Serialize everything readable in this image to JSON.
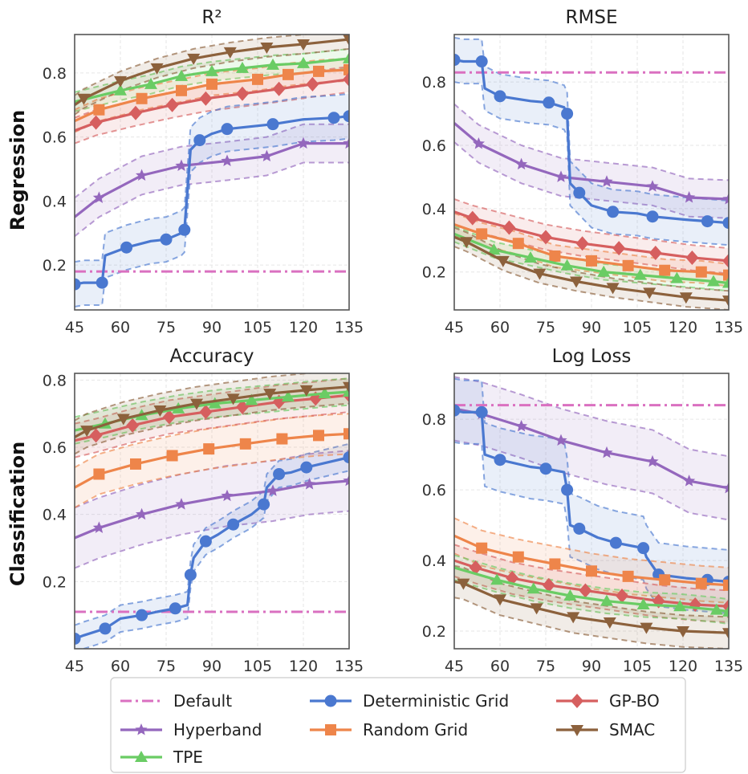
{
  "row_labels": [
    "Regression",
    "Classification"
  ],
  "legend": {
    "items": [
      {
        "label": "Default",
        "color": "#da70c0",
        "marker": "none",
        "dash": "dashdot"
      },
      {
        "label": "Deterministic Grid",
        "color": "#4a78d0",
        "marker": "circle"
      },
      {
        "label": "GP-BO",
        "color": "#d65f5f",
        "marker": "diamond"
      },
      {
        "label": "Hyperband",
        "color": "#9467bd",
        "marker": "star"
      },
      {
        "label": "Random Grid",
        "color": "#ee854a",
        "marker": "square"
      },
      {
        "label": "SMAC",
        "color": "#8c613c",
        "marker": "triangle-down"
      },
      {
        "label": "TPE",
        "color": "#6acc64",
        "marker": "triangle-up"
      }
    ]
  },
  "chart_data": [
    {
      "type": "line",
      "title": "R²",
      "row_label": "Regression",
      "xlabel": "",
      "ylabel": "",
      "xlim": [
        45,
        135
      ],
      "ylim": [
        0.06,
        0.92
      ],
      "xticks": [
        45,
        60,
        75,
        90,
        105,
        120,
        135
      ],
      "yticks": [
        0.2,
        0.4,
        0.6,
        0.8
      ],
      "grid": true,
      "series": [
        {
          "name": "Default",
          "x": [
            45,
            135
          ],
          "y": [
            0.18,
            0.18
          ]
        },
        {
          "name": "Hyperband",
          "x": [
            45,
            53,
            67,
            80,
            95,
            108,
            120,
            135
          ],
          "y": [
            0.35,
            0.41,
            0.48,
            0.51,
            0.525,
            0.54,
            0.58,
            0.58
          ],
          "band": 0.06
        },
        {
          "name": "TPE",
          "x": [
            45,
            60,
            70,
            80,
            90,
            100,
            110,
            120,
            135
          ],
          "y": [
            0.71,
            0.745,
            0.765,
            0.79,
            0.805,
            0.815,
            0.825,
            0.83,
            0.845
          ],
          "band": 0.03
        },
        {
          "name": "Random Grid",
          "x": [
            45,
            53,
            67,
            80,
            90,
            105,
            115,
            125,
            135
          ],
          "y": [
            0.65,
            0.685,
            0.72,
            0.745,
            0.765,
            0.78,
            0.795,
            0.805,
            0.81
          ],
          "band": 0.035
        },
        {
          "name": "GP-BO",
          "x": [
            45,
            52,
            65,
            77,
            88,
            100,
            112,
            123,
            135
          ],
          "y": [
            0.62,
            0.645,
            0.675,
            0.7,
            0.72,
            0.735,
            0.75,
            0.765,
            0.78
          ],
          "band": 0.04
        },
        {
          "name": "SMAC",
          "x": [
            45,
            48,
            60,
            72,
            84,
            96,
            108,
            120,
            135
          ],
          "y": [
            0.7,
            0.72,
            0.775,
            0.815,
            0.845,
            0.865,
            0.88,
            0.89,
            0.905
          ],
          "band": 0.03
        },
        {
          "name": "Deterministic Grid",
          "x": [
            45,
            48,
            54,
            55,
            62,
            70,
            75,
            80,
            81,
            83,
            86,
            90,
            95,
            100,
            110,
            120,
            130,
            135
          ],
          "y": [
            0.14,
            0.145,
            0.145,
            0.23,
            0.255,
            0.275,
            0.28,
            0.3,
            0.31,
            0.56,
            0.59,
            0.61,
            0.625,
            0.63,
            0.64,
            0.655,
            0.66,
            0.665
          ],
          "band": 0.07,
          "steps": true
        }
      ]
    },
    {
      "type": "line",
      "title": "RMSE",
      "row_label": "Regression",
      "xlabel": "",
      "ylabel": "",
      "xlim": [
        45,
        135
      ],
      "ylim": [
        0.08,
        0.95
      ],
      "xticks": [
        45,
        60,
        75,
        90,
        105,
        120,
        135
      ],
      "yticks": [
        0.2,
        0.4,
        0.6,
        0.8
      ],
      "grid": true,
      "series": [
        {
          "name": "Default",
          "x": [
            45,
            135
          ],
          "y": [
            0.83,
            0.83
          ]
        },
        {
          "name": "Hyperband",
          "x": [
            45,
            53,
            67,
            80,
            95,
            110,
            122,
            135
          ],
          "y": [
            0.67,
            0.605,
            0.54,
            0.5,
            0.485,
            0.47,
            0.435,
            0.43
          ],
          "band": 0.06
        },
        {
          "name": "Deterministic Grid",
          "x": [
            45,
            48,
            54,
            55,
            60,
            70,
            76,
            81,
            82,
            83,
            86,
            90,
            97,
            105,
            110,
            121,
            128,
            135
          ],
          "y": [
            0.87,
            0.865,
            0.865,
            0.78,
            0.755,
            0.74,
            0.735,
            0.72,
            0.7,
            0.48,
            0.45,
            0.41,
            0.39,
            0.385,
            0.375,
            0.365,
            0.36,
            0.355
          ],
          "band": 0.07,
          "steps": true
        },
        {
          "name": "GP-BO",
          "x": [
            45,
            51,
            63,
            75,
            87,
            99,
            111,
            123,
            135
          ],
          "y": [
            0.39,
            0.37,
            0.34,
            0.31,
            0.29,
            0.275,
            0.26,
            0.245,
            0.235
          ],
          "band": 0.04
        },
        {
          "name": "Random Grid",
          "x": [
            45,
            54,
            66,
            78,
            90,
            102,
            114,
            126,
            135
          ],
          "y": [
            0.35,
            0.32,
            0.29,
            0.25,
            0.235,
            0.22,
            0.205,
            0.2,
            0.19
          ],
          "band": 0.035
        },
        {
          "name": "TPE",
          "x": [
            45,
            58,
            70,
            82,
            94,
            106,
            118,
            130,
            135
          ],
          "y": [
            0.32,
            0.27,
            0.245,
            0.22,
            0.2,
            0.19,
            0.18,
            0.17,
            0.165
          ],
          "band": 0.025
        },
        {
          "name": "SMAC",
          "x": [
            45,
            49,
            61,
            73,
            85,
            97,
            109,
            121,
            135
          ],
          "y": [
            0.31,
            0.295,
            0.235,
            0.195,
            0.17,
            0.15,
            0.135,
            0.12,
            0.11
          ],
          "band": 0.03
        }
      ]
    },
    {
      "type": "line",
      "title": "Accuracy",
      "row_label": "Classification",
      "xlabel": "",
      "ylabel": "",
      "xlim": [
        45,
        135
      ],
      "ylim": [
        0.0,
        0.82
      ],
      "xticks": [
        45,
        60,
        75,
        90,
        105,
        120,
        135
      ],
      "yticks": [
        0.2,
        0.4,
        0.6,
        0.8
      ],
      "grid": true,
      "series": [
        {
          "name": "Default",
          "x": [
            45,
            135
          ],
          "y": [
            0.11,
            0.11
          ]
        },
        {
          "name": "Hyperband",
          "x": [
            45,
            53,
            67,
            80,
            95,
            110,
            122,
            135
          ],
          "y": [
            0.33,
            0.36,
            0.4,
            0.43,
            0.455,
            0.47,
            0.49,
            0.5
          ],
          "band": 0.09
        },
        {
          "name": "Deterministic Grid",
          "x": [
            45,
            48,
            55,
            60,
            67,
            72,
            78,
            82,
            83,
            84,
            88,
            92,
            97,
            103,
            107,
            108,
            112,
            116,
            121,
            128,
            135
          ],
          "y": [
            0.03,
            0.04,
            0.06,
            0.09,
            0.1,
            0.11,
            0.12,
            0.13,
            0.22,
            0.27,
            0.32,
            0.34,
            0.37,
            0.4,
            0.43,
            0.48,
            0.52,
            0.525,
            0.54,
            0.555,
            0.57
          ],
          "band": 0.04,
          "steps": true
        },
        {
          "name": "Random Grid",
          "x": [
            45,
            53,
            65,
            77,
            89,
            101,
            113,
            125,
            135
          ],
          "y": [
            0.48,
            0.52,
            0.55,
            0.575,
            0.595,
            0.61,
            0.625,
            0.635,
            0.64
          ],
          "band": 0.06
        },
        {
          "name": "GP-BO",
          "x": [
            45,
            52,
            64,
            76,
            88,
            100,
            112,
            124,
            135
          ],
          "y": [
            0.62,
            0.635,
            0.665,
            0.69,
            0.705,
            0.72,
            0.735,
            0.745,
            0.755
          ],
          "band": 0.05
        },
        {
          "name": "TPE",
          "x": [
            45,
            55,
            67,
            79,
            91,
            103,
            115,
            127,
            135
          ],
          "y": [
            0.65,
            0.67,
            0.695,
            0.715,
            0.73,
            0.74,
            0.75,
            0.76,
            0.765
          ],
          "band": 0.04
        },
        {
          "name": "SMAC",
          "x": [
            45,
            49,
            61,
            73,
            85,
            97,
            109,
            121,
            135
          ],
          "y": [
            0.63,
            0.65,
            0.685,
            0.71,
            0.73,
            0.745,
            0.76,
            0.77,
            0.78
          ],
          "band": 0.05
        }
      ]
    },
    {
      "type": "line",
      "title": "Log Loss",
      "row_label": "Classification",
      "xlabel": "",
      "ylabel": "",
      "xlim": [
        45,
        135
      ],
      "ylim": [
        0.15,
        0.93
      ],
      "xticks": [
        45,
        60,
        75,
        90,
        105,
        120,
        135
      ],
      "yticks": [
        0.2,
        0.4,
        0.6,
        0.8
      ],
      "grid": true,
      "series": [
        {
          "name": "Default",
          "x": [
            45,
            135
          ],
          "y": [
            0.84,
            0.84
          ]
        },
        {
          "name": "Hyperband",
          "x": [
            45,
            54,
            67,
            80,
            95,
            110,
            122,
            135
          ],
          "y": [
            0.83,
            0.815,
            0.78,
            0.74,
            0.705,
            0.68,
            0.625,
            0.605
          ],
          "band": 0.09
        },
        {
          "name": "Deterministic Grid",
          "x": [
            45,
            48,
            54,
            55,
            60,
            70,
            75,
            81,
            82,
            83,
            86,
            92,
            98,
            104,
            107,
            108,
            112,
            121,
            128,
            135
          ],
          "y": [
            0.825,
            0.82,
            0.82,
            0.7,
            0.685,
            0.665,
            0.66,
            0.65,
            0.6,
            0.5,
            0.49,
            0.465,
            0.45,
            0.44,
            0.435,
            0.41,
            0.36,
            0.35,
            0.345,
            0.34
          ],
          "band": 0.09,
          "steps": true
        },
        {
          "name": "Random Grid",
          "x": [
            45,
            54,
            66,
            78,
            90,
            102,
            114,
            126,
            135
          ],
          "y": [
            0.47,
            0.435,
            0.41,
            0.39,
            0.37,
            0.355,
            0.345,
            0.335,
            0.33
          ],
          "band": 0.05
        },
        {
          "name": "GP-BO",
          "x": [
            45,
            52,
            64,
            76,
            88,
            100,
            112,
            124,
            135
          ],
          "y": [
            0.4,
            0.38,
            0.35,
            0.33,
            0.315,
            0.3,
            0.285,
            0.275,
            0.27
          ],
          "band": 0.045
        },
        {
          "name": "TPE",
          "x": [
            45,
            59,
            71,
            83,
            95,
            107,
            119,
            131,
            135
          ],
          "y": [
            0.38,
            0.345,
            0.32,
            0.3,
            0.285,
            0.275,
            0.27,
            0.26,
            0.255
          ],
          "band": 0.035
        },
        {
          "name": "SMAC",
          "x": [
            45,
            48,
            60,
            72,
            84,
            96,
            108,
            120,
            135
          ],
          "y": [
            0.34,
            0.335,
            0.29,
            0.265,
            0.24,
            0.225,
            0.21,
            0.2,
            0.195
          ],
          "band": 0.045
        }
      ]
    }
  ]
}
